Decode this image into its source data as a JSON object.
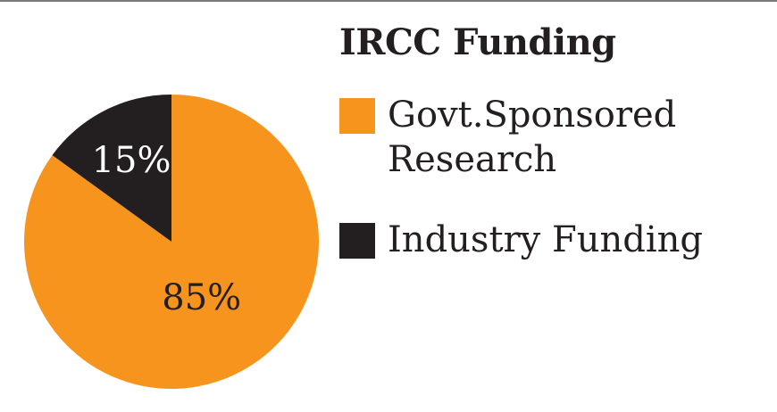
{
  "chart_data": {
    "type": "pie",
    "title": "IRCC Funding",
    "categories": [
      "Govt.Sponsored Research",
      "Industry Funding"
    ],
    "values": [
      85,
      15
    ],
    "labels": [
      "85%",
      "15%"
    ],
    "colors": [
      "#f7941d",
      "#231f20"
    ],
    "label_colors": [
      "#231f20",
      "#ffffff"
    ],
    "legend": {
      "placement": "right",
      "entries": [
        "Govt.Sponsored Research",
        "Industry Funding"
      ]
    }
  }
}
